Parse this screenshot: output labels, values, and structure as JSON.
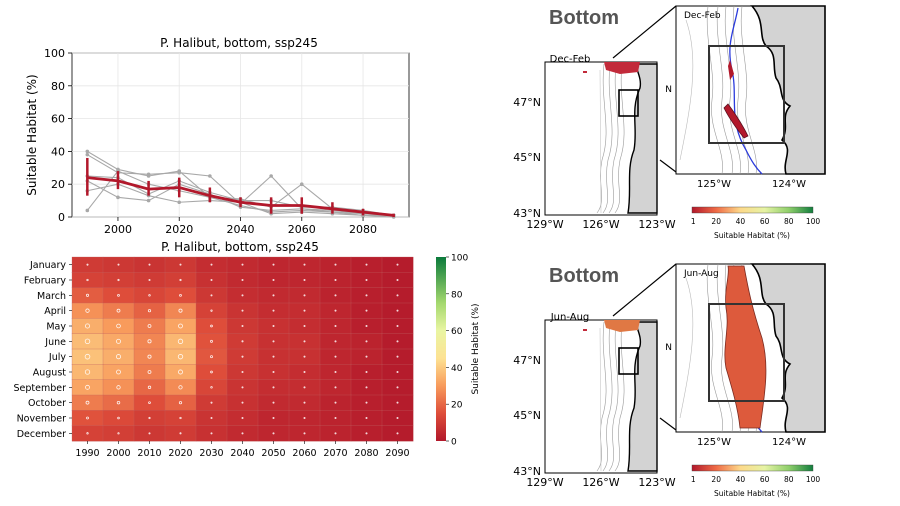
{
  "line_chart": {
    "title": "P. Halibut, bottom, ssp245",
    "ylabel": "Suitable Habitat (%)",
    "ylim": [
      0,
      100
    ],
    "yticks": [
      "0",
      "20",
      "40",
      "60",
      "80",
      "100"
    ],
    "xticks": [
      "2000",
      "2020",
      "2040",
      "2060",
      "2080"
    ],
    "colors": {
      "mean": "#b2182b",
      "members": "#a8a8a8"
    }
  },
  "heatmap": {
    "title": "P. Halibut, bottom, ssp245",
    "colorbar_label": "Suitable Habitat (%)",
    "colorbar_ticks": [
      "0",
      "20",
      "40",
      "60",
      "80",
      "100"
    ],
    "months": [
      "January",
      "February",
      "March",
      "April",
      "May",
      "June",
      "July",
      "August",
      "September",
      "October",
      "November",
      "December"
    ],
    "decades": [
      "1990",
      "2000",
      "2010",
      "2020",
      "2030",
      "2040",
      "2050",
      "2060",
      "2070",
      "2080",
      "2090"
    ]
  },
  "maps": [
    {
      "heading": "Bottom",
      "season": "Dec-Feb",
      "inset_label": "Dec-Feb",
      "lat_ticks": [
        "47°N",
        "45°N",
        "43°N"
      ],
      "lon_ticks": [
        "129°W",
        "126°W",
        "123°W"
      ],
      "inset_lat": "N",
      "inset_lon": [
        "125°W",
        "124°W"
      ],
      "cbar_ticks": [
        "1",
        "20",
        "40",
        "60",
        "80",
        "100"
      ],
      "cbar_label": "Suitable Habitat (%)"
    },
    {
      "heading": "Bottom",
      "season": "Jun-Aug",
      "inset_label": "Jun-Aug",
      "lat_ticks": [
        "47°N",
        "45°N",
        "43°N"
      ],
      "lon_ticks": [
        "129°W",
        "126°W",
        "123°W"
      ],
      "inset_lat": "N",
      "inset_lon": [
        "125°W",
        "124°W"
      ],
      "cbar_ticks": [
        "1",
        "20",
        "40",
        "60",
        "80",
        "100"
      ],
      "cbar_label": "Suitable Habitat (%)"
    }
  ],
  "chart_data": [
    {
      "type": "line",
      "title": "P. Halibut, bottom, ssp245",
      "xlabel": "",
      "ylabel": "Suitable Habitat (%)",
      "xlim": [
        1985,
        2095
      ],
      "ylim": [
        0,
        100
      ],
      "grid": true,
      "x": [
        1990,
        2000,
        2010,
        2020,
        2030,
        2040,
        2050,
        2060,
        2070,
        2080,
        2090
      ],
      "mean": [
        24,
        22,
        17,
        18,
        13,
        9,
        7,
        7,
        5,
        3,
        1
      ],
      "error_low": [
        13,
        17,
        13,
        12,
        9,
        6,
        2,
        2,
        2,
        1,
        0
      ],
      "error_high": [
        36,
        28,
        22,
        24,
        18,
        12,
        12,
        12,
        9,
        5,
        2
      ],
      "members": [
        [
          38,
          27,
          26,
          27,
          25,
          8,
          25,
          5,
          4,
          2,
          1
        ],
        [
          40,
          29,
          25,
          28,
          12,
          11,
          6,
          20,
          5,
          2,
          1
        ],
        [
          4,
          28,
          20,
          16,
          12,
          7,
          3,
          4,
          3,
          1,
          1
        ],
        [
          22,
          12,
          10,
          20,
          14,
          6,
          4,
          5,
          3,
          2,
          1
        ],
        [
          16,
          20,
          13,
          9,
          10,
          9,
          2,
          3,
          2,
          1,
          0
        ],
        [
          25,
          24,
          14,
          22,
          15,
          10,
          10,
          6,
          6,
          4,
          1
        ]
      ]
    },
    {
      "type": "heatmap",
      "title": "P. Halibut, bottom, ssp245",
      "x": [
        "1990",
        "2000",
        "2010",
        "2020",
        "2030",
        "2040",
        "2050",
        "2060",
        "2070",
        "2080",
        "2090"
      ],
      "y": [
        "January",
        "February",
        "March",
        "April",
        "May",
        "June",
        "July",
        "August",
        "September",
        "October",
        "November",
        "December"
      ],
      "zlim": [
        0,
        100
      ],
      "colorbar_label": "Suitable Habitat (%)",
      "values": [
        [
          10,
          9,
          8,
          9,
          6,
          5,
          4,
          4,
          3,
          2,
          1
        ],
        [
          12,
          11,
          10,
          11,
          7,
          5,
          4,
          4,
          3,
          2,
          1
        ],
        [
          18,
          15,
          13,
          15,
          9,
          6,
          5,
          5,
          3,
          2,
          1
        ],
        [
          28,
          24,
          19,
          26,
          12,
          8,
          6,
          6,
          4,
          2,
          1
        ],
        [
          34,
          30,
          24,
          32,
          15,
          9,
          7,
          6,
          4,
          2,
          1
        ],
        [
          37,
          33,
          26,
          36,
          16,
          10,
          7,
          7,
          4,
          3,
          1
        ],
        [
          38,
          34,
          26,
          36,
          17,
          10,
          7,
          7,
          4,
          3,
          1
        ],
        [
          36,
          32,
          24,
          33,
          15,
          9,
          7,
          6,
          4,
          2,
          1
        ],
        [
          32,
          28,
          20,
          27,
          13,
          8,
          6,
          6,
          4,
          2,
          1
        ],
        [
          24,
          21,
          15,
          19,
          10,
          7,
          5,
          5,
          3,
          2,
          1
        ],
        [
          16,
          14,
          11,
          12,
          8,
          6,
          4,
          4,
          3,
          2,
          1
        ],
        [
          12,
          11,
          9,
          10,
          7,
          5,
          4,
          4,
          3,
          2,
          1
        ]
      ]
    }
  ]
}
